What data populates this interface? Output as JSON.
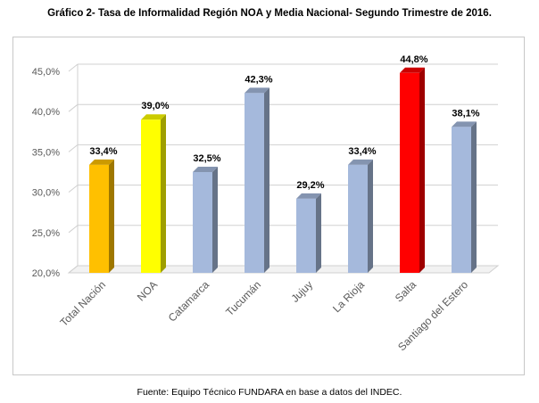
{
  "title": "Gráfico 2- Tasa de Informalidad Región NOA y Media Nacional- Segundo Trimestre de 2016.",
  "source": "Fuente: Equipo Técnico FUNDARA en base a datos del INDEC.",
  "chart_data": {
    "type": "bar",
    "title": "Gráfico 2- Tasa de Informalidad Región NOA y Media Nacional- Segundo Trimestre de 2016.",
    "xlabel": "",
    "ylabel": "",
    "categories": [
      "Total Nación",
      "NOA",
      "Catamarca",
      "Tucumán",
      "Jujuy",
      "La Rioja",
      "Salta",
      "Santiago del Estero"
    ],
    "values": [
      33.4,
      39.0,
      32.5,
      42.3,
      29.2,
      33.4,
      44.8,
      38.1
    ],
    "value_labels": [
      "33,4%",
      "39,0%",
      "32,5%",
      "42,3%",
      "29,2%",
      "33,4%",
      "44,8%",
      "38,1%"
    ],
    "bar_colors": [
      "#FFC000",
      "#FFFF00",
      "#A5B9DC",
      "#A5B9DC",
      "#A5B9DC",
      "#A5B9DC",
      "#FF0000",
      "#A5B9DC"
    ],
    "ylim": [
      20,
      45
    ],
    "yticks": [
      20,
      25,
      30,
      35,
      40,
      45
    ],
    "ytick_labels": [
      "20,0%",
      "25,0%",
      "30,0%",
      "35,0%",
      "40,0%",
      "45,0%"
    ],
    "grid": true,
    "legend": "none",
    "style": "3d-columns"
  }
}
